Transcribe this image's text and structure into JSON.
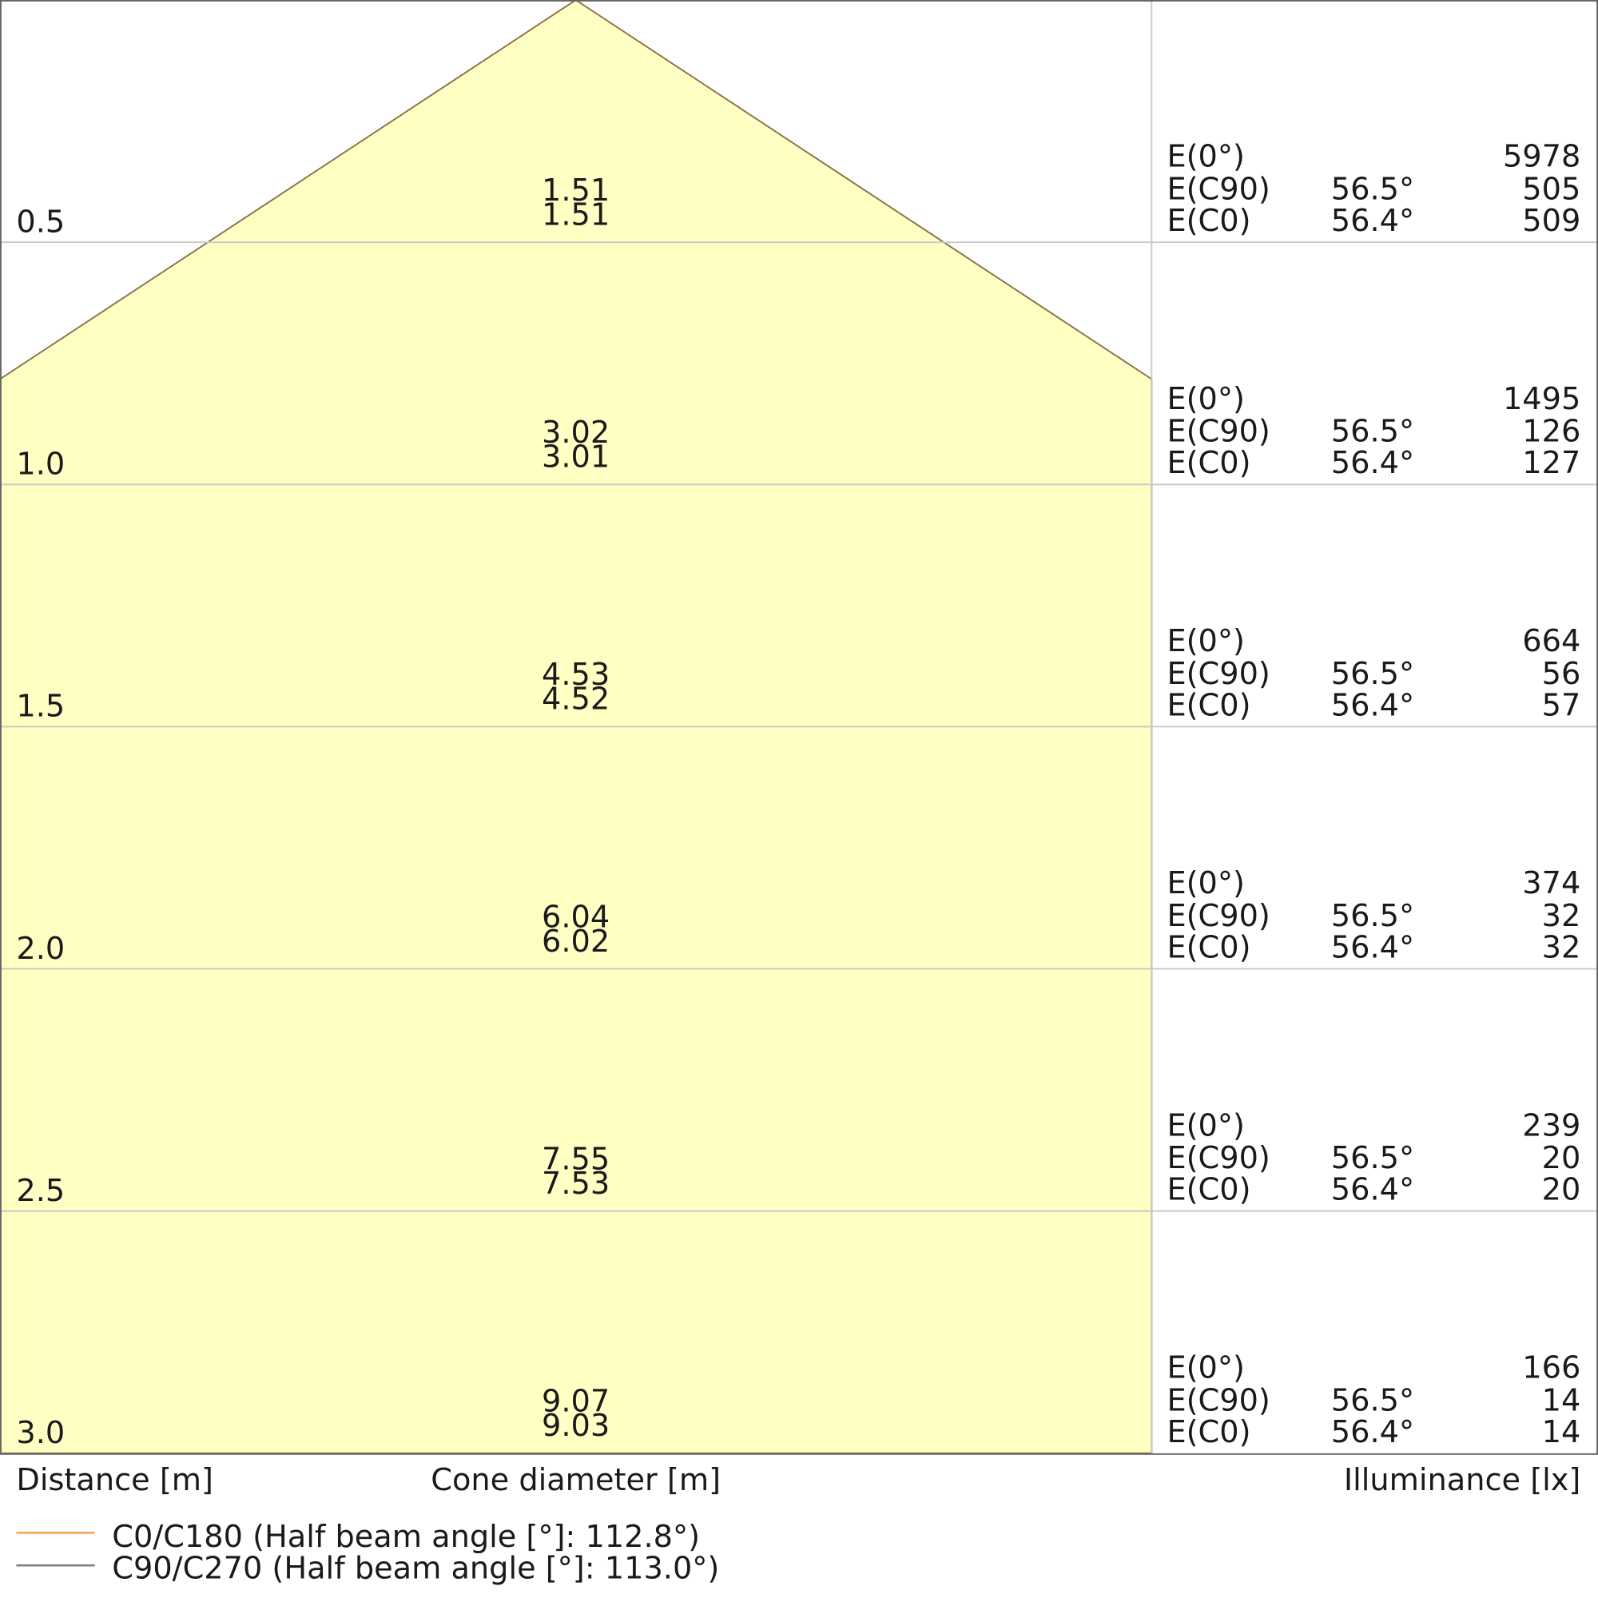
{
  "chart_data": {
    "type": "area",
    "xlabel": "Distance [m]",
    "center_label": "Cone diameter [m]",
    "right_label": "Illuminance [lx]",
    "colors": {
      "cone_fill": "#ffffc4",
      "cone_stroke": "#8b6f47",
      "grid": "#c8c8c8",
      "c0": "#f5a050",
      "c90": "#808080"
    },
    "grid": true,
    "rows": [
      {
        "distance": "0.5",
        "d_c0": "1.51",
        "d_c90": "1.51",
        "e0": "5978",
        "e_c90": "505",
        "e_c0": "509",
        "a_c90": "56.5°",
        "a_c0": "56.4°"
      },
      {
        "distance": "1.0",
        "d_c0": "3.02",
        "d_c90": "3.01",
        "e0": "1495",
        "e_c90": "126",
        "e_c0": "127",
        "a_c90": "56.5°",
        "a_c0": "56.4°"
      },
      {
        "distance": "1.5",
        "d_c0": "4.53",
        "d_c90": "4.52",
        "e0": "664",
        "e_c90": "56",
        "e_c0": "57",
        "a_c90": "56.5°",
        "a_c0": "56.4°"
      },
      {
        "distance": "2.0",
        "d_c0": "6.04",
        "d_c90": "6.02",
        "e0": "374",
        "e_c90": "32",
        "e_c0": "32",
        "a_c90": "56.5°",
        "a_c0": "56.4°"
      },
      {
        "distance": "2.5",
        "d_c0": "7.55",
        "d_c90": "7.53",
        "e0": "239",
        "e_c90": "20",
        "e_c0": "20",
        "a_c90": "56.5°",
        "a_c0": "56.4°"
      },
      {
        "distance": "3.0",
        "d_c0": "9.07",
        "d_c90": "9.03",
        "e0": "166",
        "e_c90": "14",
        "e_c0": "14",
        "a_c90": "56.5°",
        "a_c0": "56.4°"
      }
    ],
    "e_labels": {
      "e0": "E(0°)",
      "e_c90": "E(C90)",
      "e_c0": "E(C0)"
    },
    "legend": [
      {
        "name": "C0/C180 (Half beam angle [°]: 112.8°)",
        "color": "#f5a050"
      },
      {
        "name": "C90/C270 (Half beam angle [°]: 113.0°)",
        "color": "#808080"
      }
    ]
  }
}
